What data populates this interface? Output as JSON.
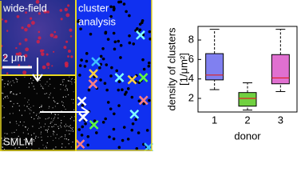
{
  "panels": {
    "wide_field": "wide-field",
    "scale": "2 μm",
    "smlm": "SMLM",
    "cluster": [
      "cluster",
      "analysis"
    ]
  },
  "chart_data": {
    "type": "box",
    "y_label": [
      "density of clusters",
      "[1/μm²]"
    ],
    "x_label": "donor",
    "categories": [
      "1",
      "2",
      "3"
    ],
    "boxes": [
      {
        "min": 2.9,
        "q1": 3.9,
        "median": 4.4,
        "q3": 6.6,
        "max": 9.1,
        "color": "#8080f0"
      },
      {
        "min": 0.8,
        "q1": 1.2,
        "median": 2.0,
        "q3": 2.6,
        "max": 3.6,
        "color": "#70d040"
      },
      {
        "min": 2.7,
        "q1": 3.5,
        "median": 4.1,
        "q3": 6.5,
        "max": 9.1,
        "color": "#e070d0"
      }
    ],
    "median_color": "#e02020",
    "ylim": [
      0.6,
      9.4
    ],
    "yticks": [
      2,
      4,
      6,
      8
    ]
  }
}
